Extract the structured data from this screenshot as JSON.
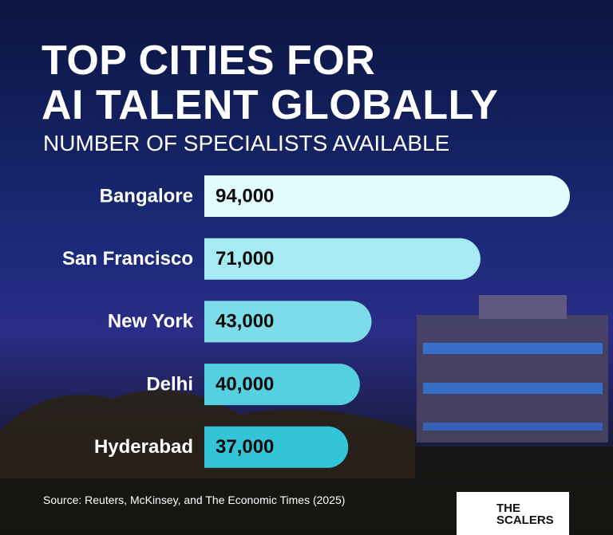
{
  "chart_data": {
    "type": "bar",
    "orientation": "horizontal",
    "title": "TOP CITIES FOR\nAI TALENT GLOBALLY",
    "subtitle": "NUMBER OF SPECIALISTS AVAILABLE",
    "categories": [
      "Bangalore",
      "San Francisco",
      "New York",
      "Delhi",
      "Hyderabad"
    ],
    "values": [
      94000,
      71000,
      43000,
      40000,
      37000
    ],
    "value_labels": [
      "94,000",
      "71,000",
      "43,000",
      "40,000",
      "37,000"
    ],
    "colors": [
      "#e2fbff",
      "#a6eaf3",
      "#7cdce9",
      "#55d0e1",
      "#33c4d8"
    ],
    "source": "Source: Reuters, McKinsey, and The Economic Times (2025)",
    "logo": "THE\nSCALERS"
  }
}
